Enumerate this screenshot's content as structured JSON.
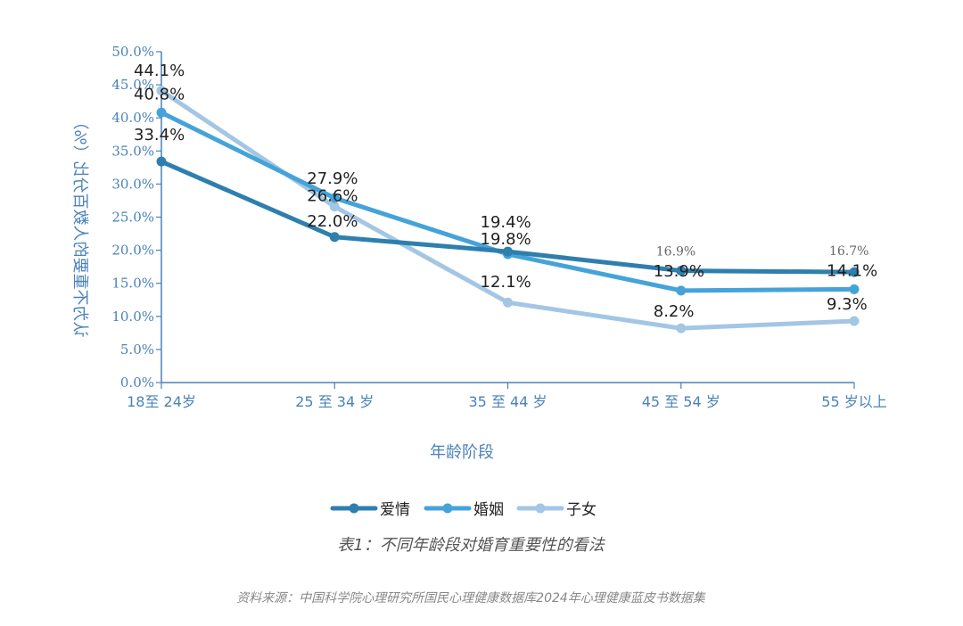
{
  "chart_data": {
    "type": "line",
    "categories": [
      "18至 24岁",
      "25 至 34 岁",
      "35 至 44 岁",
      "45 至 54 岁",
      "55 岁以上"
    ],
    "series": [
      {
        "name": "爱情",
        "values": [
          33.4,
          22.0,
          19.8,
          16.9,
          16.7
        ],
        "color": "#2e7fae",
        "labels": [
          "33.4%",
          "22.0%",
          "19.8%",
          "16.9%",
          "16.7%"
        ]
      },
      {
        "name": "婚姻",
        "values": [
          40.8,
          27.9,
          19.4,
          13.9,
          14.1
        ],
        "color": "#45a3d9",
        "labels": [
          "40.8%",
          "27.9%",
          "19.4%",
          "13.9%",
          "14.1%"
        ]
      },
      {
        "name": "子女",
        "values": [
          44.1,
          26.6,
          12.1,
          8.2,
          9.3
        ],
        "color": "#a3c6e4",
        "labels": [
          "44.1%",
          "26.6%",
          "12.1%",
          "8.2%",
          "9.3%"
        ]
      }
    ],
    "ylim": [
      0,
      50
    ],
    "yticks": [
      0,
      5,
      10,
      15,
      20,
      25,
      30,
      35,
      40,
      45,
      50
    ],
    "ytick_labels": [
      "0.0%",
      "5.0%",
      "10.0%",
      "15.0%",
      "20.0%",
      "25.0%",
      "30.0%",
      "35.0%",
      "40.0%",
      "45.0%",
      "50.0%"
    ],
    "xlabel": "年龄阶段",
    "ylabel": "认为不重要的人数百分比（%）",
    "legend_position": "bottom"
  },
  "caption": "表1：不同年龄段对婚育重要性的看法",
  "source": "资料来源：中国科学院心理研究所国民心理健康数据库2024年心理健康蓝皮书数据集"
}
